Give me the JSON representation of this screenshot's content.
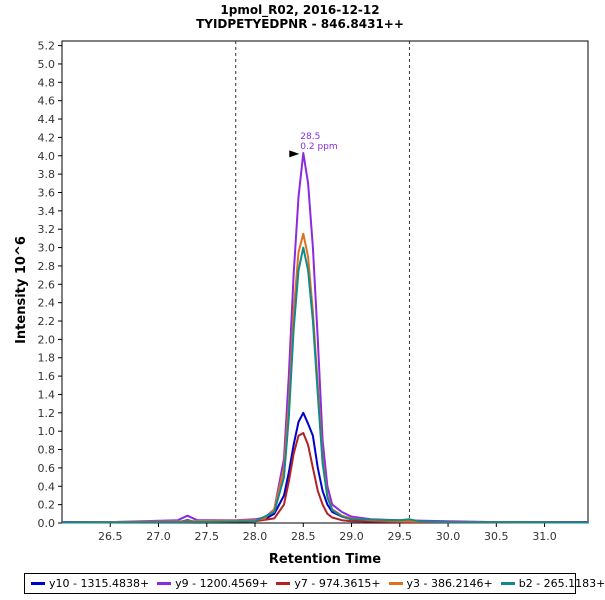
{
  "chart_data": {
    "type": "line",
    "title": "1pmol_R02, 2016-12-12",
    "subtitle": "TYIDPETYEDPNR - 846.8431++",
    "xlabel": "Retention Time",
    "ylabel": "Intensity 10^6",
    "xlim": [
      26.0,
      31.45
    ],
    "ylim": [
      0,
      5.25
    ],
    "xticks": [
      "26.5",
      "27.0",
      "27.5",
      "28.0",
      "28.5",
      "29.0",
      "29.5",
      "30.0",
      "30.5",
      "31.0"
    ],
    "yticks": [
      "0.0",
      "0.2",
      "0.4",
      "0.6",
      "0.8",
      "1.0",
      "1.2",
      "1.4",
      "1.6",
      "1.8",
      "2.0",
      "2.2",
      "2.4",
      "2.6",
      "2.8",
      "3.0",
      "3.2",
      "3.4",
      "3.6",
      "3.8",
      "4.0",
      "4.2",
      "4.4",
      "4.6",
      "4.8",
      "5.0",
      "5.2"
    ],
    "integration_bounds": [
      27.8,
      29.6
    ],
    "annotation": {
      "x": 28.5,
      "y": 4.02,
      "line1": "28.5",
      "line2": "0.2 ppm",
      "color": "#8a2be2"
    },
    "series": [
      {
        "name": "y10 - 1315.4838+",
        "color": "#0000cc",
        "x": [
          26.0,
          26.5,
          27.2,
          27.3,
          27.4,
          27.9,
          28.1,
          28.2,
          28.3,
          28.35,
          28.4,
          28.45,
          28.5,
          28.55,
          28.6,
          28.65,
          28.7,
          28.75,
          28.8,
          28.9,
          29.0,
          29.2,
          29.5,
          30.0,
          31.0,
          31.45
        ],
        "y": [
          0.01,
          0.01,
          0.01,
          0.03,
          0.01,
          0.02,
          0.04,
          0.1,
          0.3,
          0.55,
          0.85,
          1.1,
          1.2,
          1.08,
          0.95,
          0.6,
          0.35,
          0.2,
          0.12,
          0.07,
          0.04,
          0.02,
          0.02,
          0.01,
          0.01,
          0.01
        ]
      },
      {
        "name": "y9 - 1200.4569+",
        "color": "#8a2be2",
        "x": [
          26.0,
          26.5,
          27.2,
          27.3,
          27.4,
          27.8,
          28.0,
          28.1,
          28.2,
          28.3,
          28.35,
          28.4,
          28.45,
          28.5,
          28.55,
          28.6,
          28.65,
          28.7,
          28.75,
          28.8,
          28.9,
          29.0,
          29.2,
          29.5,
          30.0,
          30.5,
          31.0,
          31.45
        ],
        "y": [
          0.01,
          0.01,
          0.03,
          0.08,
          0.03,
          0.03,
          0.04,
          0.06,
          0.15,
          0.7,
          1.6,
          2.7,
          3.55,
          4.03,
          3.7,
          3.0,
          2.0,
          0.9,
          0.4,
          0.2,
          0.12,
          0.07,
          0.04,
          0.03,
          0.02,
          0.01,
          0.01,
          0.01
        ]
      },
      {
        "name": "y7 - 974.3615+",
        "color": "#b22222",
        "x": [
          26.0,
          27.3,
          28.0,
          28.2,
          28.3,
          28.35,
          28.4,
          28.45,
          28.5,
          28.55,
          28.6,
          28.65,
          28.7,
          28.75,
          28.8,
          28.9,
          29.0,
          29.5,
          30.0,
          31.45
        ],
        "y": [
          0.005,
          0.01,
          0.02,
          0.05,
          0.2,
          0.45,
          0.75,
          0.95,
          0.98,
          0.85,
          0.6,
          0.35,
          0.2,
          0.1,
          0.06,
          0.03,
          0.02,
          0.01,
          0.01,
          0.005
        ]
      },
      {
        "name": "y3 - 386.2146+",
        "color": "#e07020",
        "x": [
          26.0,
          27.3,
          28.0,
          28.1,
          28.2,
          28.3,
          28.35,
          28.4,
          28.45,
          28.5,
          28.55,
          28.6,
          28.65,
          28.7,
          28.75,
          28.8,
          28.9,
          29.0,
          29.2,
          29.5,
          30.0,
          31.45
        ],
        "y": [
          0.005,
          0.02,
          0.03,
          0.05,
          0.15,
          0.6,
          1.3,
          2.3,
          2.95,
          3.15,
          2.9,
          2.3,
          1.5,
          0.7,
          0.3,
          0.15,
          0.08,
          0.05,
          0.03,
          0.02,
          0.01,
          0.005
        ]
      },
      {
        "name": "b2 - 265.1183+",
        "color": "#138a8a",
        "x": [
          26.0,
          27.3,
          28.0,
          28.2,
          28.3,
          28.35,
          28.4,
          28.45,
          28.5,
          28.55,
          28.6,
          28.65,
          28.7,
          28.75,
          28.8,
          28.9,
          29.0,
          29.5,
          29.6,
          29.7,
          30.0,
          31.45
        ],
        "y": [
          0.005,
          0.01,
          0.02,
          0.12,
          0.5,
          1.15,
          2.1,
          2.75,
          3.0,
          2.75,
          2.2,
          1.4,
          0.65,
          0.28,
          0.14,
          0.07,
          0.04,
          0.03,
          0.04,
          0.02,
          0.01,
          0.005
        ]
      }
    ]
  }
}
